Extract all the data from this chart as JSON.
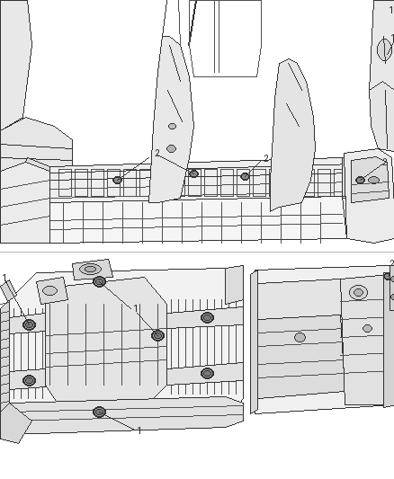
{
  "bg_color": "#ffffff",
  "line_color": "#4a4a4a",
  "figsize": [
    4.38,
    5.33
  ],
  "dpi": 100,
  "img_b64": ""
}
